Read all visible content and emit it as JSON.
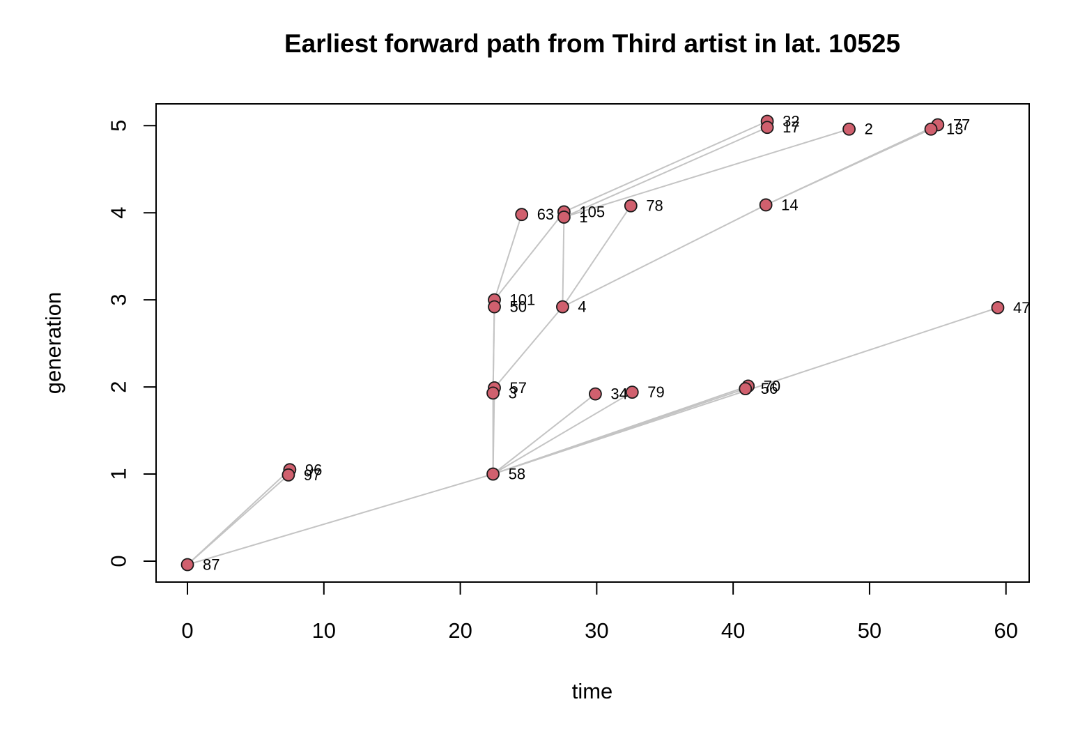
{
  "chart_data": {
    "type": "scatter",
    "title": "Earliest forward path from Third artist in lat. 10525",
    "xlabel": "time",
    "ylabel": "generation",
    "xlim": [
      -2.3,
      61.7
    ],
    "ylim": [
      -0.24,
      5.25
    ],
    "x_ticks": [
      0,
      10,
      20,
      30,
      40,
      50,
      60
    ],
    "y_ticks": [
      0,
      1,
      2,
      3,
      4,
      5
    ],
    "grid": false,
    "legend": "none",
    "colors": {
      "point_fill": "#d0606e",
      "point_stroke": "#1a1a1a",
      "edge": "#c4c4c4"
    },
    "points": [
      {
        "label": "87",
        "x": 0.0,
        "y": -0.04
      },
      {
        "label": "96",
        "x": 7.5,
        "y": 1.05
      },
      {
        "label": "97",
        "x": 7.4,
        "y": 0.99
      },
      {
        "label": "58",
        "x": 22.4,
        "y": 1.0
      },
      {
        "label": "57",
        "x": 22.5,
        "y": 1.99
      },
      {
        "label": "3",
        "x": 22.4,
        "y": 1.93
      },
      {
        "label": "101",
        "x": 22.5,
        "y": 3.0
      },
      {
        "label": "50",
        "x": 22.5,
        "y": 2.92
      },
      {
        "label": "63",
        "x": 24.5,
        "y": 3.98
      },
      {
        "label": "105",
        "x": 27.6,
        "y": 4.01
      },
      {
        "label": "1",
        "x": 27.6,
        "y": 3.95
      },
      {
        "label": "4",
        "x": 27.5,
        "y": 2.92
      },
      {
        "label": "78",
        "x": 32.5,
        "y": 4.08
      },
      {
        "label": "34",
        "x": 29.9,
        "y": 1.92
      },
      {
        "label": "79",
        "x": 32.6,
        "y": 1.94
      },
      {
        "label": "70",
        "x": 41.1,
        "y": 2.01
      },
      {
        "label": "56",
        "x": 40.9,
        "y": 1.98
      },
      {
        "label": "14",
        "x": 42.4,
        "y": 4.09
      },
      {
        "label": "32",
        "x": 42.5,
        "y": 5.05
      },
      {
        "label": "17",
        "x": 42.5,
        "y": 4.98
      },
      {
        "label": "2",
        "x": 48.5,
        "y": 4.96
      },
      {
        "label": "77",
        "x": 55.0,
        "y": 5.01
      },
      {
        "label": "13",
        "x": 54.5,
        "y": 4.96
      },
      {
        "label": "47",
        "x": 59.4,
        "y": 2.91
      }
    ],
    "edges": [
      [
        "87",
        "96"
      ],
      [
        "87",
        "97"
      ],
      [
        "87",
        "58"
      ],
      [
        "58",
        "57"
      ],
      [
        "58",
        "3"
      ],
      [
        "58",
        "34"
      ],
      [
        "58",
        "79"
      ],
      [
        "58",
        "70"
      ],
      [
        "58",
        "56"
      ],
      [
        "58",
        "47"
      ],
      [
        "3",
        "101"
      ],
      [
        "3",
        "50"
      ],
      [
        "57",
        "4"
      ],
      [
        "101",
        "63"
      ],
      [
        "101",
        "105"
      ],
      [
        "4",
        "1"
      ],
      [
        "4",
        "78"
      ],
      [
        "4",
        "14"
      ],
      [
        "105",
        "32"
      ],
      [
        "1",
        "17"
      ],
      [
        "1",
        "2"
      ],
      [
        "14",
        "77"
      ],
      [
        "14",
        "13"
      ]
    ]
  }
}
